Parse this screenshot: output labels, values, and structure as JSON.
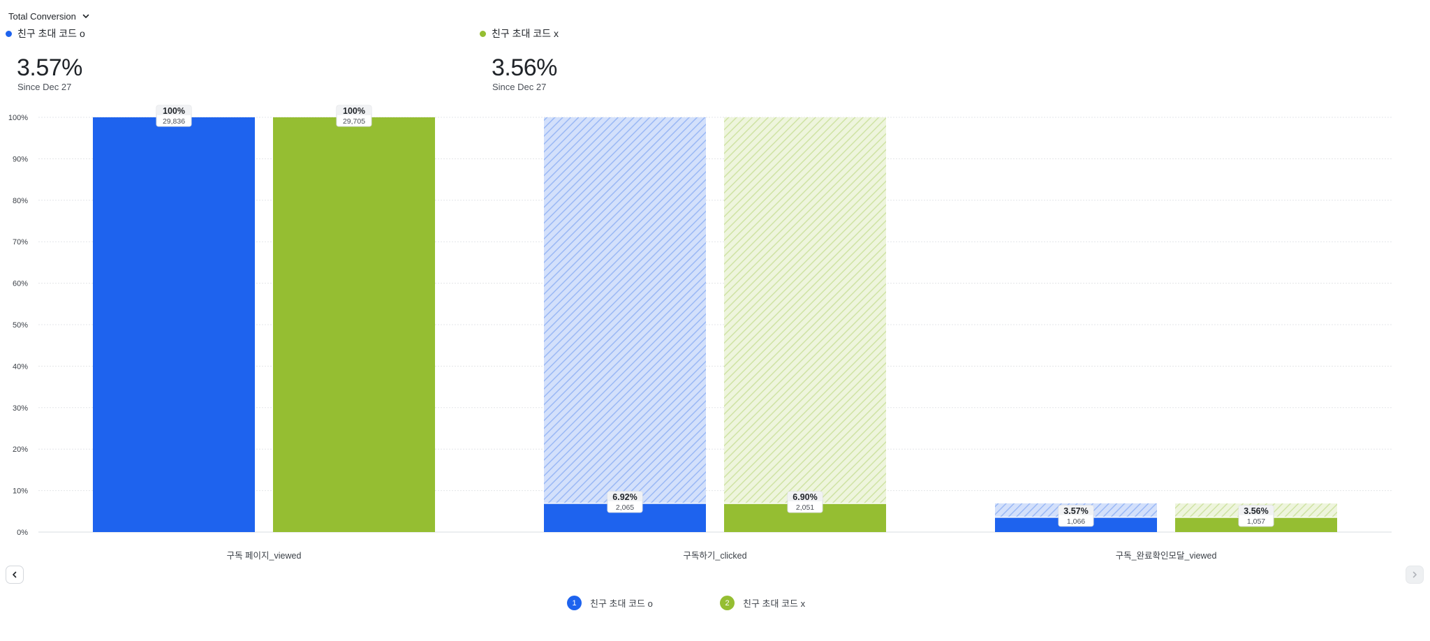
{
  "header": {
    "metric_label": "Total Conversion"
  },
  "summary": [
    {
      "name": "친구 초대 코드 o",
      "value": "3.57%",
      "since": "Since Dec 27",
      "color": "#1e63ee"
    },
    {
      "name": "친구 초대 코드 x",
      "value": "3.56%",
      "since": "Since Dec 27",
      "color": "#95be32"
    }
  ],
  "legend": [
    {
      "index": "1",
      "name": "친구 초대 코드 o",
      "color": "#1e63ee"
    },
    {
      "index": "2",
      "name": "친구 초대 코드 x",
      "color": "#95be32"
    }
  ],
  "icons": {
    "dropdown": "chevron-down-icon",
    "prev": "chevron-left-icon",
    "next": "chevron-right-icon"
  },
  "chart_data": {
    "type": "bar",
    "categories": [
      "구독 페이지_viewed",
      "구독하기_clicked",
      "구독_완료확인모달_viewed"
    ],
    "ylim": [
      0,
      100
    ],
    "yticks": [
      "0%",
      "10%",
      "20%",
      "30%",
      "40%",
      "50%",
      "60%",
      "70%",
      "80%",
      "90%",
      "100%"
    ],
    "grid": true,
    "series": [
      {
        "name": "친구 초대 코드 o",
        "color": "#1e63ee",
        "values": [
          100,
          6.92,
          3.57
        ],
        "labels": [
          "100%",
          "6.92%",
          "3.57%"
        ],
        "counts": [
          "29,836",
          "2,065",
          "1,066"
        ],
        "dropoff_upto": [
          100,
          100,
          6.92
        ]
      },
      {
        "name": "친구 초대 코드 x",
        "color": "#95be32",
        "values": [
          100,
          6.9,
          3.56
        ],
        "labels": [
          "100%",
          "6.90%",
          "3.56%"
        ],
        "counts": [
          "29,705",
          "2,051",
          "1,057"
        ],
        "dropoff_upto": [
          100,
          100,
          6.9
        ]
      }
    ]
  }
}
